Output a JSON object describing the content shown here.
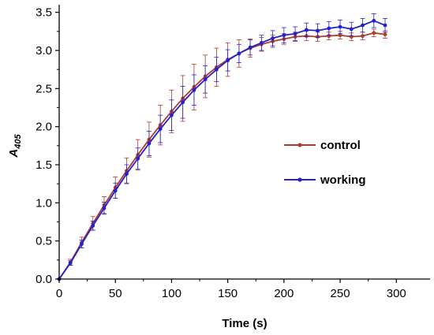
{
  "chart_data": {
    "type": "line",
    "xlabel": "Time (s)",
    "ylabel_main": "A",
    "ylabel_sub": "405",
    "xlim": [
      0,
      330
    ],
    "ylim": [
      0,
      3.6
    ],
    "xticks": [
      "0",
      "50",
      "100",
      "150",
      "200",
      "250",
      "300"
    ],
    "yticks": [
      "0.0",
      "0.5",
      "1.0",
      "1.5",
      "2.0",
      "2.5",
      "3.0",
      "3.5"
    ],
    "grid": false,
    "legend_position": "right-middle",
    "x": [
      0,
      10,
      20,
      30,
      40,
      50,
      60,
      70,
      80,
      90,
      100,
      110,
      120,
      130,
      140,
      150,
      160,
      170,
      180,
      190,
      200,
      210,
      220,
      230,
      240,
      250,
      260,
      270,
      280,
      290
    ],
    "series": [
      {
        "name": "control",
        "color": "#b03a2e",
        "values": [
          0.0,
          0.22,
          0.48,
          0.73,
          0.97,
          1.2,
          1.42,
          1.63,
          1.83,
          2.02,
          2.2,
          2.37,
          2.52,
          2.66,
          2.78,
          2.88,
          2.96,
          3.03,
          3.08,
          3.12,
          3.15,
          3.18,
          3.19,
          3.18,
          3.19,
          3.2,
          3.18,
          3.19,
          3.23,
          3.21
        ],
        "errors": [
          0.0,
          0.04,
          0.07,
          0.09,
          0.11,
          0.14,
          0.17,
          0.2,
          0.23,
          0.26,
          0.28,
          0.3,
          0.3,
          0.28,
          0.25,
          0.22,
          0.18,
          0.12,
          0.09,
          0.08,
          0.07,
          0.06,
          0.06,
          0.06,
          0.05,
          0.05,
          0.05,
          0.05,
          0.05,
          0.05
        ]
      },
      {
        "name": "working",
        "color": "#2222cc",
        "values": [
          0.0,
          0.21,
          0.46,
          0.7,
          0.93,
          1.16,
          1.38,
          1.58,
          1.78,
          1.97,
          2.15,
          2.32,
          2.48,
          2.62,
          2.75,
          2.87,
          2.96,
          3.04,
          3.1,
          3.16,
          3.2,
          3.22,
          3.27,
          3.26,
          3.29,
          3.31,
          3.28,
          3.33,
          3.39,
          3.33
        ],
        "errors": [
          0.0,
          0.03,
          0.05,
          0.06,
          0.08,
          0.1,
          0.12,
          0.14,
          0.16,
          0.18,
          0.2,
          0.21,
          0.2,
          0.18,
          0.16,
          0.14,
          0.12,
          0.1,
          0.1,
          0.1,
          0.1,
          0.09,
          0.09,
          0.09,
          0.09,
          0.09,
          0.09,
          0.09,
          0.09,
          0.09
        ]
      }
    ]
  }
}
